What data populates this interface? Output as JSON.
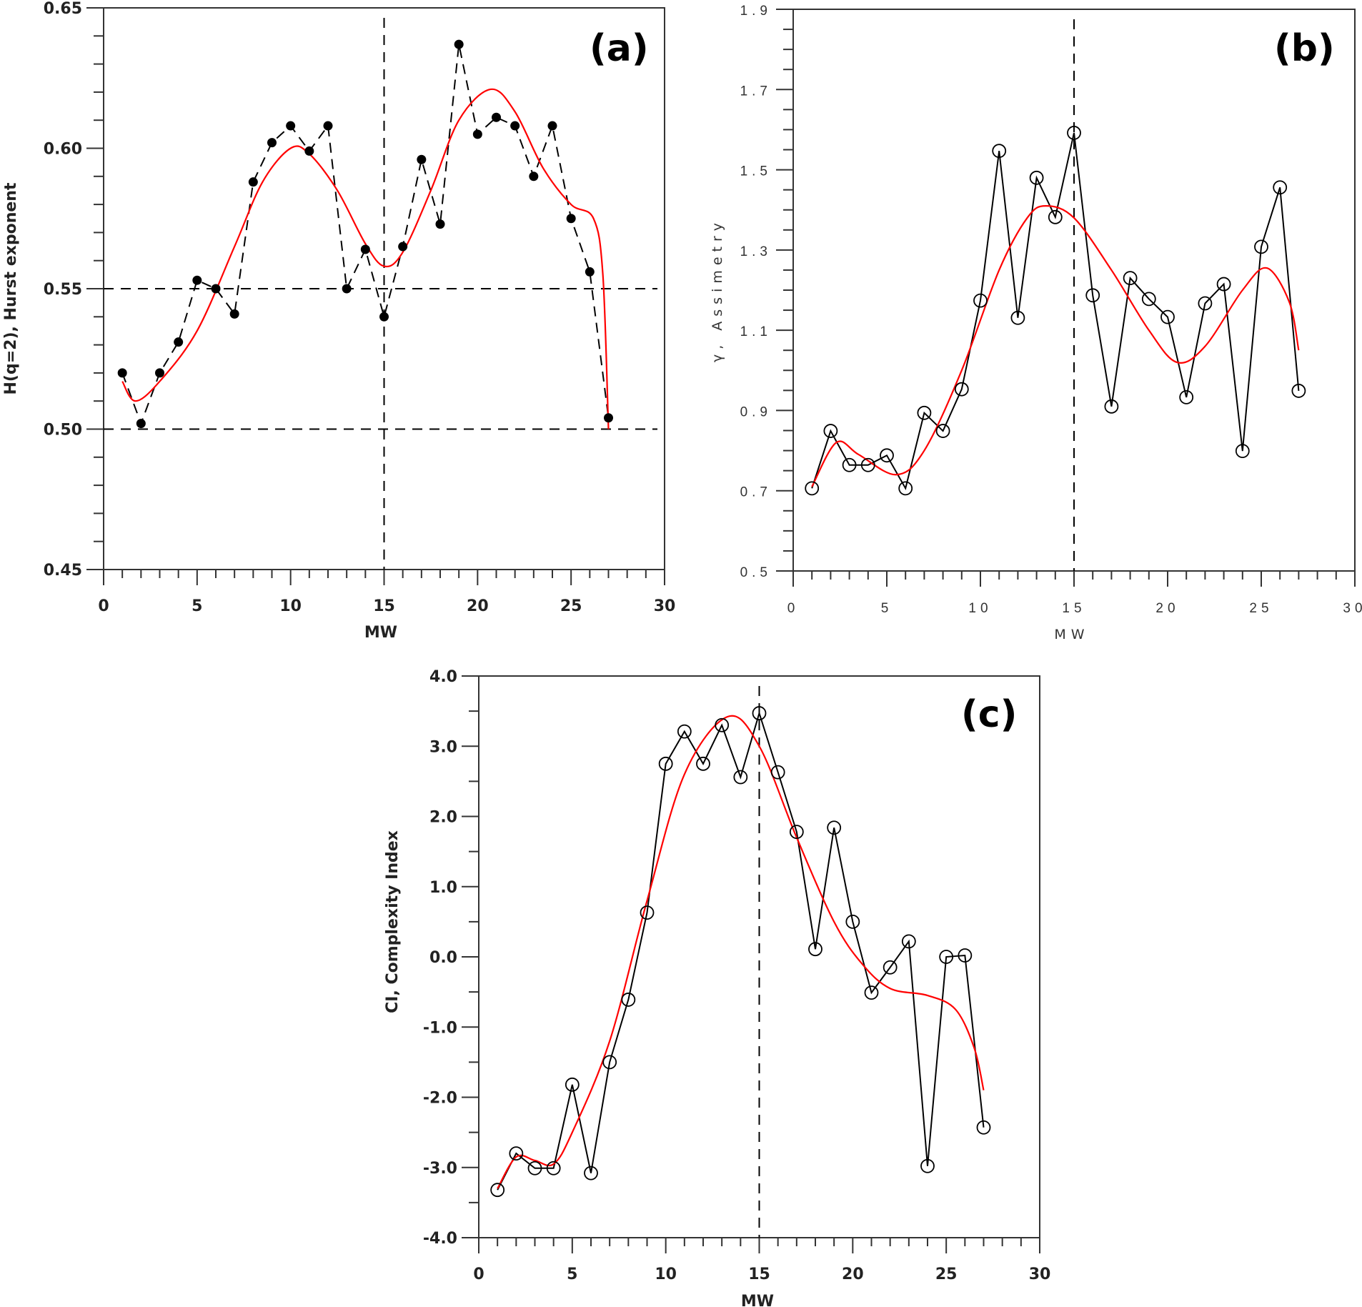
{
  "colors": {
    "data_line": "#000000",
    "fit_line": "#ff0000",
    "ref_line": "#000000"
  },
  "chart_data": [
    {
      "type": "line",
      "panel": "(a)",
      "xlabel": "MW",
      "ylabel": "H(q=2), Hurst exponent",
      "xlim": [
        0,
        30
      ],
      "ylim": [
        0.45,
        0.65
      ],
      "xticks": [
        0,
        5,
        10,
        15,
        20,
        25,
        30
      ],
      "xtick_labels": [
        "0",
        "5",
        "10",
        "15",
        "20",
        "25",
        "30"
      ],
      "yticks": [
        0.45,
        0.5,
        0.55,
        0.6,
        0.65
      ],
      "ytick_labels": [
        "0.45",
        "0.50",
        "0.55",
        "0.60",
        "0.65"
      ],
      "marker": "filled-circle",
      "line_style": "dashed",
      "ref_hlines": [
        0.55,
        0.5
      ],
      "ref_vline": 15,
      "x": [
        1,
        2,
        3,
        4,
        5,
        6,
        7,
        8,
        9,
        10,
        11,
        12,
        13,
        14,
        15,
        16,
        17,
        18,
        19,
        20,
        21,
        22,
        23,
        24,
        25,
        26,
        27
      ],
      "series": [
        {
          "name": "data",
          "values": [
            0.52,
            0.502,
            0.52,
            0.531,
            0.553,
            0.55,
            0.541,
            0.588,
            0.602,
            0.608,
            0.599,
            0.608,
            0.55,
            0.564,
            0.54,
            0.565,
            0.596,
            0.573,
            0.637,
            0.605,
            0.611,
            0.608,
            0.59,
            0.608,
            0.575,
            0.556,
            0.504
          ]
        },
        {
          "name": "fit",
          "x": [
            1,
            1.7,
            3,
            5,
            7,
            8.5,
            10,
            11,
            12.5,
            14,
            15,
            16,
            17.5,
            19,
            20.7,
            22,
            23.5,
            25,
            26.2,
            26.7,
            27
          ],
          "values": [
            0.517,
            0.51,
            0.517,
            0.535,
            0.565,
            0.588,
            0.6,
            0.598,
            0.585,
            0.566,
            0.558,
            0.563,
            0.585,
            0.61,
            0.621,
            0.613,
            0.593,
            0.58,
            0.575,
            0.555,
            0.5
          ]
        }
      ]
    },
    {
      "type": "line",
      "panel": "(b)",
      "xlabel": "MW",
      "ylabel": "γ, Assimetry",
      "xlim": [
        0,
        30
      ],
      "ylim": [
        0.5,
        1.9
      ],
      "xticks": [
        0,
        5,
        10,
        15,
        20,
        25,
        30
      ],
      "xtick_labels": [
        "0",
        "5",
        "10",
        "15",
        "20",
        "25",
        "30"
      ],
      "yticks": [
        0.5,
        0.7,
        0.9,
        1.1,
        1.3,
        1.5,
        1.7,
        1.9
      ],
      "ytick_labels": [
        "0.5",
        "0.7",
        "0.9",
        "1.1",
        "1.3",
        "1.5",
        "1.7",
        "1.9"
      ],
      "marker": "open-circle",
      "line_style": "solid",
      "ref_hlines": [],
      "ref_vline": 15,
      "x": [
        1,
        2,
        3,
        4,
        5,
        6,
        7,
        8,
        9,
        10,
        11,
        12,
        13,
        14,
        15,
        16,
        17,
        18,
        19,
        20,
        21,
        22,
        23,
        24,
        25,
        26,
        27
      ],
      "series": [
        {
          "name": "data",
          "values": [
            0.706,
            0.849,
            0.764,
            0.764,
            0.788,
            0.706,
            0.894,
            0.849,
            0.953,
            1.174,
            1.547,
            1.131,
            1.48,
            1.382,
            1.592,
            1.187,
            0.91,
            1.23,
            1.178,
            1.133,
            0.933,
            1.167,
            1.215,
            0.799,
            1.308,
            1.456,
            0.949
          ]
        },
        {
          "name": "fit",
          "x": [
            1,
            2.3,
            3.5,
            5.5,
            7,
            9,
            11,
            12.5,
            13.5,
            15,
            17,
            19,
            20.5,
            22,
            24,
            25.3,
            26.5,
            27
          ],
          "values": [
            0.71,
            0.82,
            0.79,
            0.74,
            0.8,
            1.0,
            1.25,
            1.38,
            1.41,
            1.38,
            1.25,
            1.1,
            1.02,
            1.06,
            1.2,
            1.255,
            1.17,
            1.05
          ]
        }
      ]
    },
    {
      "type": "line",
      "panel": "(c)",
      "xlabel": "MW",
      "ylabel": "CI, Complexity Index",
      "xlim": [
        0,
        30
      ],
      "ylim": [
        -4,
        4
      ],
      "xticks": [
        0,
        5,
        10,
        15,
        20,
        25,
        30
      ],
      "xtick_labels": [
        "0",
        "5",
        "10",
        "15",
        "20",
        "25",
        "30"
      ],
      "yticks": [
        -4,
        -3,
        -2,
        -1,
        0,
        1,
        2,
        3,
        4
      ],
      "ytick_labels": [
        "-4.0",
        "-3.0",
        "-2.0",
        "-1.0",
        "0.0",
        "1.0",
        "2.0",
        "3.0",
        "4.0"
      ],
      "marker": "open-circle",
      "line_style": "solid",
      "ref_hlines": [],
      "ref_vline": 15,
      "x": [
        1,
        2,
        3,
        4,
        5,
        6,
        7,
        8,
        9,
        10,
        11,
        12,
        13,
        14,
        15,
        16,
        17,
        18,
        19,
        20,
        21,
        22,
        23,
        24,
        25,
        26,
        27
      ],
      "series": [
        {
          "name": "data",
          "values": [
            -3.32,
            -2.8,
            -3.01,
            -3.01,
            -1.82,
            -3.08,
            -1.5,
            -0.61,
            0.63,
            2.75,
            3.21,
            2.75,
            3.3,
            2.56,
            3.47,
            2.63,
            1.78,
            0.11,
            1.84,
            0.5,
            -0.51,
            -0.15,
            0.22,
            -2.98,
            0.0,
            0.02,
            -2.43
          ]
        },
        {
          "name": "fit",
          "x": [
            1,
            2,
            3,
            4,
            5,
            7,
            9,
            11,
            13.3,
            15,
            17,
            19,
            20.5,
            22,
            24,
            25.5,
            26.5,
            27
          ],
          "values": [
            -3.3,
            -2.85,
            -2.9,
            -2.95,
            -2.5,
            -1.2,
            0.8,
            2.6,
            3.42,
            3.0,
            1.7,
            0.5,
            -0.1,
            -0.45,
            -0.55,
            -0.75,
            -1.3,
            -1.9
          ]
        }
      ]
    }
  ]
}
